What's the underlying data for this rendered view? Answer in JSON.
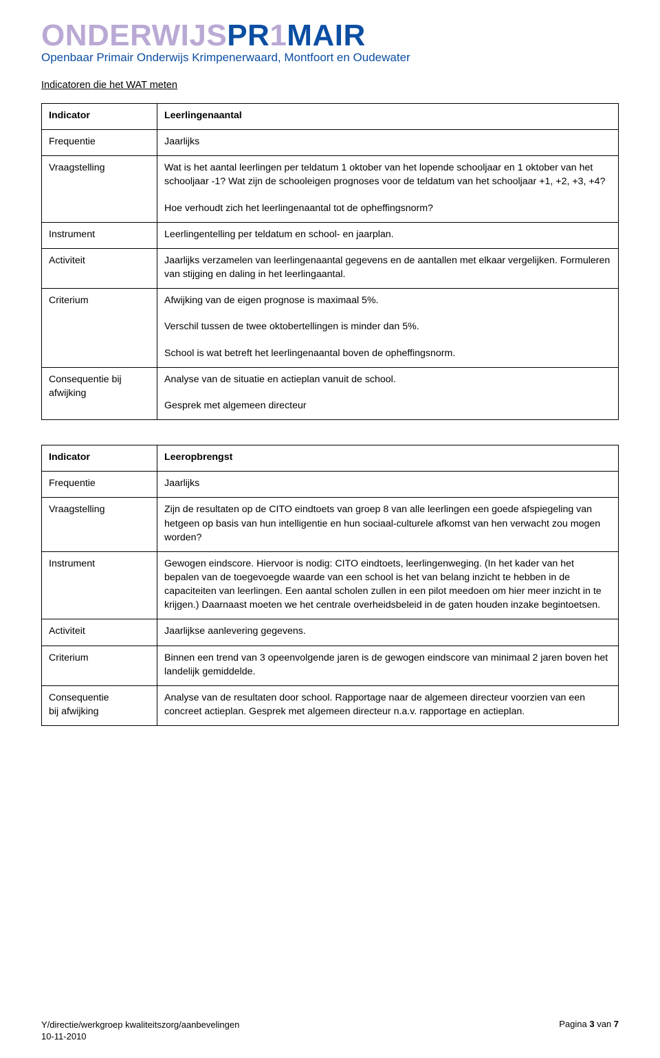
{
  "logo": {
    "part1": "ONDERWIJS",
    "part2": "PR",
    "part3": "1",
    "part4": "MAIR",
    "subtitle": "Openbaar Primair Onderwijs Krimpenerwaard, Montfoort en Oudewater"
  },
  "section_title": "Indicatoren die het WAT meten",
  "labels": {
    "indicator": "Indicator",
    "frequentie": "Frequentie",
    "vraagstelling": "Vraagstelling",
    "instrument": "Instrument",
    "activiteit": "Activiteit",
    "criterium": "Criterium",
    "consequentie_bij": "Consequentie bij",
    "afwijking": "afwijking",
    "consequentie": "Consequentie",
    "bij_afwijking": "bij afwijking"
  },
  "table1": {
    "indicator": "Leerlingenaantal",
    "frequentie": "Jaarlijks",
    "vraagstelling_p1": "Wat is het aantal leerlingen per teldatum 1 oktober van het lopende schooljaar en 1 oktober van het schooljaar -1? Wat zijn de schooleigen prognoses voor de teldatum van het schooljaar +1, +2, +3, +4?",
    "vraagstelling_p2": "Hoe verhoudt zich het leerlingenaantal tot de opheffingsnorm?",
    "instrument": "Leerlingentelling per teldatum en school- en jaarplan.",
    "activiteit": "Jaarlijks verzamelen van leerlingenaantal gegevens en de aantallen met elkaar vergelijken. Formuleren van stijging en daling in het leerlingaantal.",
    "criterium_p1": "Afwijking van de eigen prognose is maximaal 5%.",
    "criterium_p2": "Verschil tussen de twee oktobertellingen is minder dan 5%.",
    "criterium_p3": "School is wat betreft het leerlingenaantal boven de opheffingsnorm.",
    "consequentie_p1": "Analyse van de situatie en actieplan vanuit de school.",
    "consequentie_p2": "Gesprek met algemeen directeur"
  },
  "table2": {
    "indicator": "Leeropbrengst",
    "frequentie": "Jaarlijks",
    "vraagstelling": "Zijn de resultaten op de CITO eindtoets van groep 8 van alle leerlingen een goede afspiegeling van hetgeen op basis van hun intelligentie en hun sociaal-culturele afkomst van hen verwacht zou mogen worden?",
    "instrument": "Gewogen eindscore. Hiervoor is nodig: CITO eindtoets, leerlingenweging. (In het kader van het bepalen van de toegevoegde waarde van een school is het van belang inzicht te hebben in de capaciteiten van leerlingen. Een aantal scholen zullen in een pilot meedoen om hier meer inzicht in te krijgen.) Daarnaast moeten we het centrale overheidsbeleid in de gaten houden inzake begintoetsen.",
    "activiteit": "Jaarlijkse aanlevering gegevens.",
    "criterium": "Binnen een trend van 3 opeenvolgende jaren is de gewogen eindscore van minimaal 2 jaren boven het landelijk gemiddelde.",
    "consequentie": "Analyse van de resultaten door school. Rapportage naar de algemeen directeur voorzien van een concreet actieplan. Gesprek met algemeen directeur n.a.v. rapportage en actieplan."
  },
  "footer": {
    "path_line1": "Y/directie/werkgroep kwaliteitszorg/aanbevelingen",
    "path_line2": "10-11-2010",
    "page_label": "Pagina ",
    "page_current": "3",
    "page_of": " van ",
    "page_total": "7"
  },
  "colors": {
    "brand_blue": "#0b4ea2",
    "brand_lavender": "#b9a9d4",
    "text": "#000000",
    "border": "#000000",
    "background": "#ffffff"
  }
}
